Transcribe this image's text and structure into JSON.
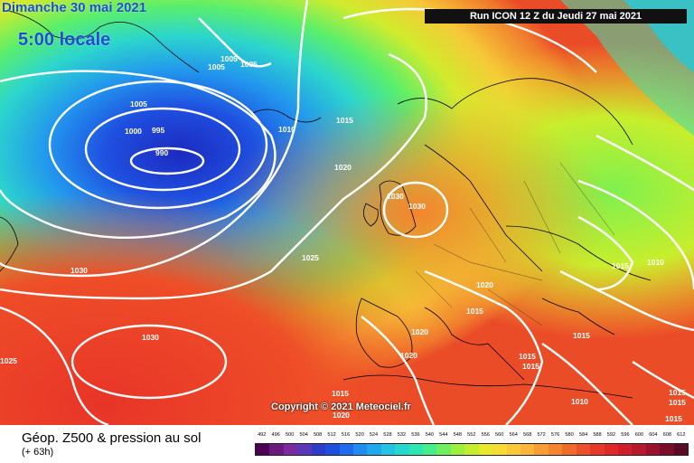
{
  "header": {
    "date_label": "Dimanche 30 mai 2021",
    "hour_label": "5:00 locale",
    "run_label": "Run ICON 12 Z du Jeudi 27 mai 2021"
  },
  "copyright": "Copyright © 2021 Meteociel.fr",
  "legend": {
    "title": "Géop. Z500 & pression au sol",
    "subtitle": "(+ 63h)",
    "scale_values": [
      "492",
      "496",
      "500",
      "504",
      "508",
      "512",
      "516",
      "520",
      "524",
      "528",
      "532",
      "536",
      "540",
      "544",
      "548",
      "552",
      "556",
      "560",
      "564",
      "568",
      "572",
      "576",
      "580",
      "584",
      "588",
      "592",
      "596",
      "600",
      "604",
      "608",
      "612"
    ],
    "scale_colors": [
      "#4b0054",
      "#6a1a7d",
      "#7c2aa0",
      "#5a36b8",
      "#2a3cc8",
      "#1c4ee0",
      "#1d6cf0",
      "#1f8cf2",
      "#20a8ee",
      "#22c4e6",
      "#24d8d0",
      "#2ee6b0",
      "#44ee8a",
      "#6cf060",
      "#9af03c",
      "#c4ee2c",
      "#e6e82a",
      "#f6dc30",
      "#fcc83a",
      "#fcb43a",
      "#f89c34",
      "#f4842e",
      "#f06a2a",
      "#ec5028",
      "#e83828",
      "#e02828",
      "#d01e2a",
      "#b8182c",
      "#9a122c",
      "#7a0e2a",
      "#5a0a26"
    ]
  },
  "isobars": [
    {
      "label": "1005",
      "pos": "top-left"
    },
    {
      "label": "1005",
      "pos": "top-left-2"
    },
    {
      "label": "1005",
      "pos": "top-left-3"
    },
    {
      "label": "1005",
      "pos": "iceland"
    },
    {
      "label": "1000",
      "pos": "low-ring"
    },
    {
      "label": "995",
      "pos": "low-ring"
    },
    {
      "label": "990",
      "pos": "low-center"
    },
    {
      "label": "1010",
      "pos": "mid"
    },
    {
      "label": "1015",
      "pos": "mid"
    },
    {
      "label": "1020",
      "pos": "mid"
    },
    {
      "label": "1030",
      "pos": "uk"
    },
    {
      "label": "1030",
      "pos": "uk"
    },
    {
      "label": "1025",
      "pos": "atlantic"
    },
    {
      "label": "1030",
      "pos": "west"
    },
    {
      "label": "1030",
      "pos": "southwest"
    },
    {
      "label": "1025",
      "pos": "far-left"
    },
    {
      "label": "1020",
      "pos": "france"
    },
    {
      "label": "1015",
      "pos": "alps"
    },
    {
      "label": "1020",
      "pos": "iberia"
    },
    {
      "label": "1020",
      "pos": "iberia-south"
    },
    {
      "label": "1015",
      "pos": "balkans"
    },
    {
      "label": "1015",
      "pos": "greece"
    },
    {
      "label": "1015",
      "pos": "greece-2"
    },
    {
      "label": "1015",
      "pos": "east"
    },
    {
      "label": "1010",
      "pos": "east"
    },
    {
      "label": "1015",
      "pos": "africa"
    },
    {
      "label": "1020",
      "pos": "africa"
    },
    {
      "label": "1010",
      "pos": "turkey"
    },
    {
      "label": "1015",
      "pos": "right-edge"
    },
    {
      "label": "1015",
      "pos": "right-edge-2"
    },
    {
      "label": "1015",
      "pos": "right-edge-3"
    }
  ]
}
